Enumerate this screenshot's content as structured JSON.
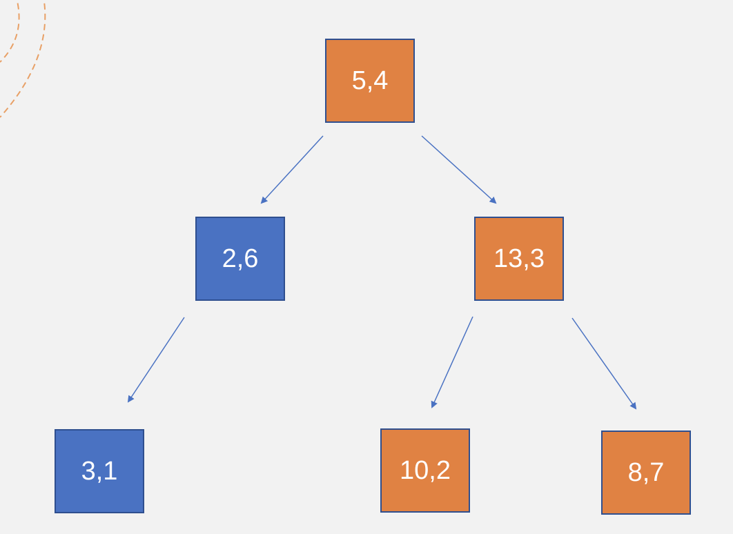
{
  "colors": {
    "orange": "#e08243",
    "blue": "#4a72c2",
    "arrow": "#4a72c2",
    "decoration": "#e8a066",
    "background": "#f2f2f2"
  },
  "nodes": [
    {
      "id": "n54",
      "label": "5,4",
      "color": "orange"
    },
    {
      "id": "n26",
      "label": "2,6",
      "color": "blue"
    },
    {
      "id": "n133",
      "label": "13,3",
      "color": "orange"
    },
    {
      "id": "n31",
      "label": "3,1",
      "color": "blue"
    },
    {
      "id": "n102",
      "label": "10,2",
      "color": "orange"
    },
    {
      "id": "n87",
      "label": "8,7",
      "color": "orange"
    }
  ],
  "edges": [
    {
      "from": "n54",
      "to": "n26"
    },
    {
      "from": "n54",
      "to": "n133"
    },
    {
      "from": "n26",
      "to": "n31"
    },
    {
      "from": "n133",
      "to": "n102"
    },
    {
      "from": "n133",
      "to": "n87"
    }
  ]
}
